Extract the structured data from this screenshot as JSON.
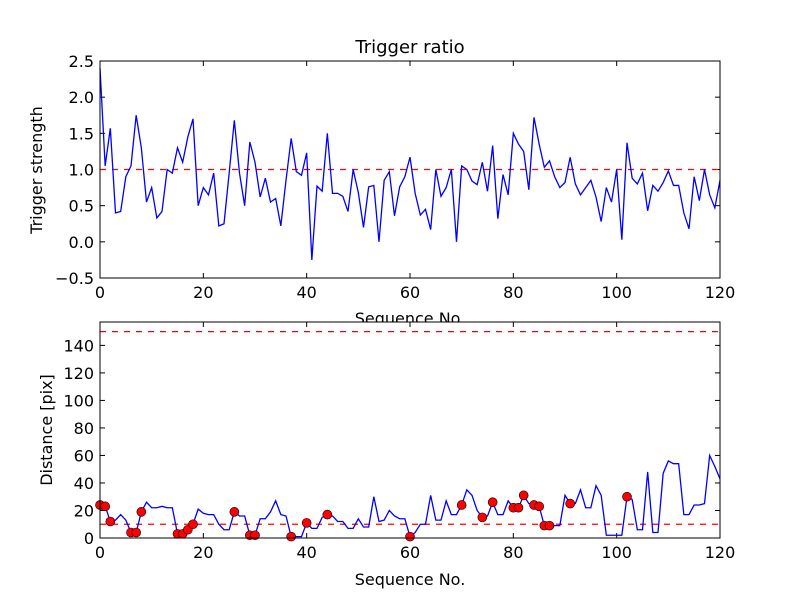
{
  "chart_data": [
    {
      "type": "line",
      "title": "Trigger ratio",
      "xlabel": "Sequence No.",
      "ylabel": "Trigger strength",
      "xlim": [
        0,
        120
      ],
      "ylim": [
        -0.5,
        2.5
      ],
      "xticks": [
        "0",
        "20",
        "40",
        "60",
        "80",
        "100",
        "120"
      ],
      "yticks": [
        "−0.5",
        "0.0",
        "0.5",
        "1.0",
        "1.5",
        "2.0",
        "2.5"
      ],
      "threshold": 1.0,
      "series": [
        {
          "name": "trigger strength",
          "color": "#0000ff",
          "values": [
            2.4,
            1.05,
            1.57,
            0.4,
            0.42,
            0.9,
            1.05,
            1.75,
            1.3,
            0.55,
            0.75,
            0.33,
            0.42,
            1.0,
            0.95,
            1.3,
            1.1,
            1.45,
            1.7,
            0.5,
            0.75,
            0.65,
            0.95,
            0.22,
            0.25,
            0.95,
            1.68,
            0.95,
            0.5,
            1.38,
            1.1,
            0.62,
            0.88,
            0.55,
            0.6,
            0.22,
            0.85,
            1.43,
            0.97,
            0.92,
            1.23,
            -0.25,
            0.77,
            0.7,
            1.5,
            0.67,
            0.67,
            0.63,
            0.42,
            1.0,
            0.68,
            0.2,
            0.76,
            0.78,
            0.0,
            0.85,
            0.97,
            0.36,
            0.76,
            0.9,
            1.17,
            0.67,
            0.37,
            0.45,
            0.17,
            1.0,
            0.63,
            0.75,
            1.0,
            0.0,
            1.05,
            1.0,
            0.84,
            0.79,
            1.1,
            0.7,
            1.33,
            0.32,
            0.93,
            0.65,
            1.5,
            1.35,
            1.25,
            0.72,
            1.72,
            1.35,
            1.03,
            1.12,
            0.9,
            0.75,
            0.82,
            1.17,
            0.8,
            0.65,
            0.75,
            0.85,
            0.62,
            0.28,
            0.75,
            0.55,
            1.0,
            0.03,
            1.37,
            0.88,
            0.8,
            0.95,
            0.43,
            0.78,
            0.7,
            0.82,
            0.98,
            0.78,
            0.78,
            0.4,
            0.18,
            0.9,
            0.57,
            1.0,
            0.65,
            0.47,
            0.85
          ]
        }
      ],
      "threshold_color": "#ff0000"
    },
    {
      "type": "line",
      "title": "",
      "xlabel": "Sequence No.",
      "ylabel": "Distance [pix]",
      "xlim": [
        0,
        120
      ],
      "ylim": [
        0,
        157
      ],
      "xticks": [
        "0",
        "20",
        "40",
        "60",
        "80",
        "100",
        "120"
      ],
      "yticks": [
        "0",
        "20",
        "40",
        "60",
        "80",
        "100",
        "120",
        "140"
      ],
      "thresholds": [
        10,
        150
      ],
      "series": [
        {
          "name": "distance",
          "color": "#0000ff",
          "values": [
            24,
            23,
            12,
            13,
            17,
            13,
            4,
            4,
            19,
            26,
            22,
            22,
            23,
            22,
            22,
            3,
            3,
            6,
            10,
            21,
            18,
            17,
            17,
            10,
            6,
            6,
            19,
            16,
            16,
            2,
            2,
            14,
            14,
            19,
            27,
            17,
            16,
            1,
            1,
            1,
            11,
            7,
            7,
            15,
            17,
            16,
            12,
            12,
            7,
            7,
            14,
            8,
            8,
            30,
            12,
            13,
            20,
            16,
            14,
            14,
            1,
            4,
            10,
            10,
            31,
            13,
            13,
            27,
            17,
            17,
            24,
            35,
            31,
            20,
            15,
            16,
            26,
            17,
            17,
            27,
            22,
            22,
            31,
            25,
            24,
            23,
            9,
            9,
            9,
            9,
            31,
            25,
            25,
            35,
            22,
            22,
            38,
            31,
            2,
            2,
            2,
            2,
            30,
            28,
            6,
            6,
            48,
            4,
            4,
            47,
            56,
            54,
            54,
            17,
            17,
            24,
            24,
            25,
            60,
            52,
            43
          ]
        }
      ],
      "markers": {
        "color": "#ff0000",
        "x": [
          0,
          1,
          2,
          6,
          7,
          8,
          15,
          16,
          17,
          18,
          26,
          29,
          30,
          37,
          40,
          44,
          60,
          70,
          74,
          76,
          80,
          81,
          82,
          84,
          85,
          86,
          87,
          91,
          102
        ],
        "y": [
          24,
          23,
          12,
          4,
          4,
          19,
          3,
          3,
          6,
          10,
          19,
          2,
          2,
          1,
          11,
          17,
          1,
          24,
          15,
          26,
          22,
          22,
          31,
          24,
          23,
          9,
          9,
          25,
          30
        ]
      }
    }
  ]
}
